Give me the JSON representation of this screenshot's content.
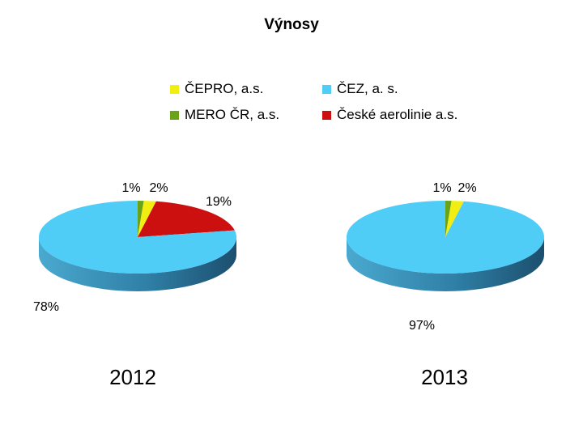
{
  "title": "Výnosy",
  "chart_data": {
    "type": "pie",
    "title": "Výnosy",
    "legend": [
      {
        "name": "ČEPRO, a.s.",
        "color": "#f2ee12"
      },
      {
        "name": "ČEZ, a. s.",
        "color": "#4fcdf7"
      },
      {
        "name": "MERO ČR, a.s.",
        "color": "#6aa31a"
      },
      {
        "name": "České aerolinie a.s.",
        "color": "#cc1010"
      }
    ],
    "pies": [
      {
        "year": "2012",
        "slices": [
          {
            "name": "MERO ČR, a.s.",
            "value": 1,
            "label": "1%"
          },
          {
            "name": "ČEPRO, a.s.",
            "value": 2,
            "label": "2%"
          },
          {
            "name": "České aerolinie a.s.",
            "value": 19,
            "label": "19%"
          },
          {
            "name": "ČEZ, a. s.",
            "value": 78,
            "label": "78%"
          }
        ]
      },
      {
        "year": "2013",
        "slices": [
          {
            "name": "MERO ČR, a.s.",
            "value": 1,
            "label": "1%"
          },
          {
            "name": "ČEPRO, a.s.",
            "value": 2,
            "label": "2%"
          },
          {
            "name": "ČEZ, a. s.",
            "value": 97,
            "label": "97%"
          }
        ]
      }
    ]
  }
}
